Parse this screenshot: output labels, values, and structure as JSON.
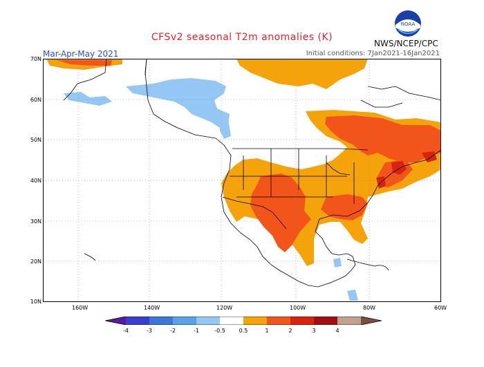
{
  "header": {
    "title": "CFSv2 seasonal T2m anomalies (K)",
    "season": "Mar-Apr-May 2021",
    "initial_conditions": "Initial conditions: 7Jan2021-16Jan2021",
    "agency": "NWS/NCEP/CPC",
    "logo_text": "NOAA"
  },
  "axes": {
    "lat_labels": [
      "70N",
      "60N",
      "50N",
      "40N",
      "30N",
      "20N",
      "10N"
    ],
    "lon_labels": [
      "160W",
      "140W",
      "120W",
      "100W",
      "80W",
      "60W"
    ]
  },
  "legend": {
    "labels": [
      "-4",
      "-3",
      "-2",
      "-1",
      "-0.5",
      "0.5",
      "1",
      "2",
      "3",
      "4"
    ],
    "colors": {
      "lt_m4": "#5a1aa0",
      "m4_m3": "#3b3fd0",
      "m3_m2": "#3c78d8",
      "m2_m1": "#5ea0e6",
      "m1_m05": "#94c7f3",
      "neutral": "#ffffff",
      "p05_p1": "#f5a30a",
      "p1_p2": "#f2541a",
      "p2_p3": "#d62410",
      "p3_p4": "#a01010",
      "gt_p4": "#c0a090"
    }
  },
  "map_colors": {
    "warm_light": "#f5a30a",
    "warm_mid": "#f2541a",
    "warm_strong": "#d62410",
    "cool_light": "#94c7f3"
  }
}
